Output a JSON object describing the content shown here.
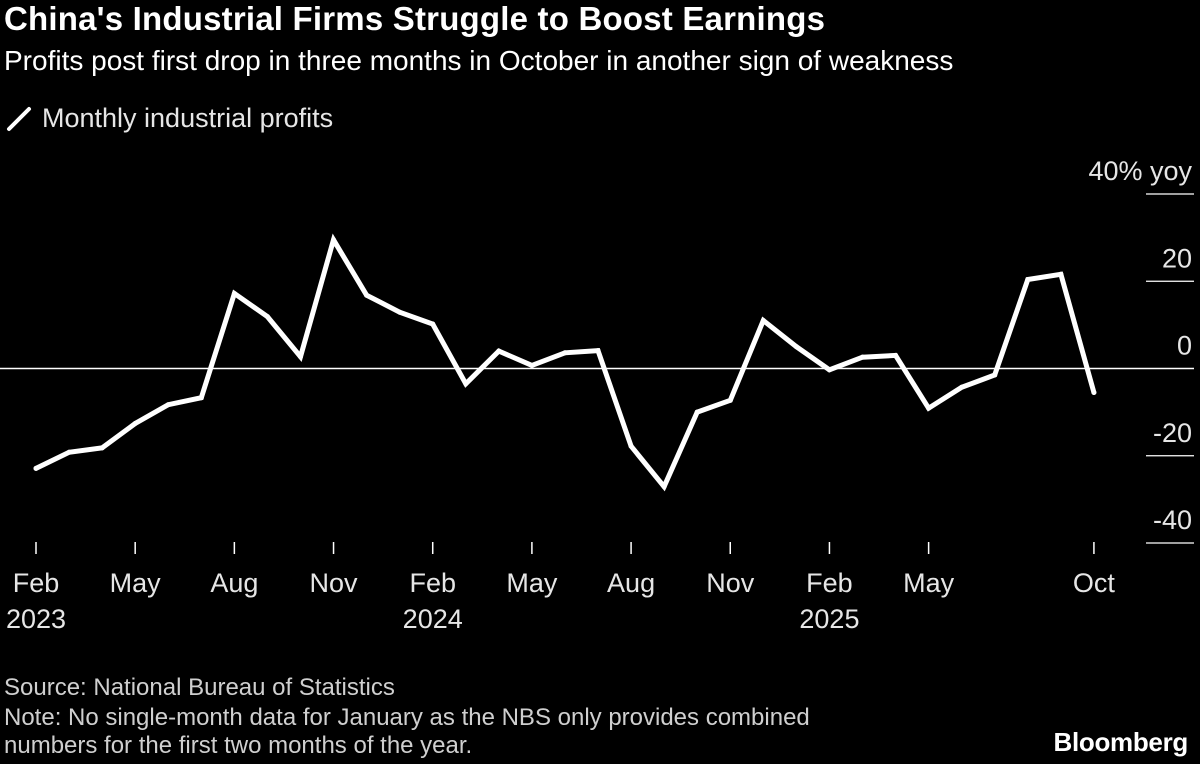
{
  "title": "China's Industrial Firms Struggle to Boost Earnings",
  "subtitle": "Profits post first drop in three months in October in another sign of weakness",
  "legend_label": "Monthly industrial profits",
  "source": "Source: National Bureau of Statistics",
  "note_line1": "Note: No single-month data for January as the NBS only provides combined",
  "note_line2": "numbers for the first two months of the year.",
  "brand": "Bloomberg",
  "colors": {
    "background": "#000000",
    "line": "#ffffff",
    "text": "#ffffff"
  },
  "chart_data": {
    "type": "line",
    "title": "China's Industrial Firms Struggle to Boost Earnings",
    "ylabel": "% yoy",
    "ylim": [
      -40,
      40
    ],
    "y_ticks": [
      {
        "value": 40,
        "label": "40% yoy"
      },
      {
        "value": 20,
        "label": "20"
      },
      {
        "value": 0,
        "label": "0"
      },
      {
        "value": -20,
        "label": "-20"
      },
      {
        "value": -40,
        "label": "-40"
      }
    ],
    "x_ticks": [
      {
        "month_index": 0,
        "label": "Feb",
        "year": "2023"
      },
      {
        "month_index": 3,
        "label": "May",
        "year": ""
      },
      {
        "month_index": 6,
        "label": "Aug",
        "year": ""
      },
      {
        "month_index": 9,
        "label": "Nov",
        "year": ""
      },
      {
        "month_index": 12,
        "label": "Feb",
        "year": "2024"
      },
      {
        "month_index": 15,
        "label": "May",
        "year": ""
      },
      {
        "month_index": 18,
        "label": "Aug",
        "year": ""
      },
      {
        "month_index": 21,
        "label": "Nov",
        "year": ""
      },
      {
        "month_index": 24,
        "label": "Feb",
        "year": "2025"
      },
      {
        "month_index": 27,
        "label": "May",
        "year": ""
      },
      {
        "month_index": 32,
        "label": "Oct",
        "year": ""
      }
    ],
    "series": [
      {
        "name": "Monthly industrial profits",
        "points": [
          {
            "month_index": 0,
            "period": "2023-02",
            "value": -22.9
          },
          {
            "month_index": 1,
            "period": "2023-03",
            "value": -19.2
          },
          {
            "month_index": 2,
            "period": "2023-04",
            "value": -18.2
          },
          {
            "month_index": 3,
            "period": "2023-05",
            "value": -12.6
          },
          {
            "month_index": 4,
            "period": "2023-06",
            "value": -8.3
          },
          {
            "month_index": 5,
            "period": "2023-07",
            "value": -6.7
          },
          {
            "month_index": 6,
            "period": "2023-08",
            "value": 17.2
          },
          {
            "month_index": 7,
            "period": "2023-09",
            "value": 11.9
          },
          {
            "month_index": 8,
            "period": "2023-10",
            "value": 2.7
          },
          {
            "month_index": 9,
            "period": "2023-11",
            "value": 29.5
          },
          {
            "month_index": 10,
            "period": "2023-12",
            "value": 16.8
          },
          {
            "month_index": 11,
            "period": "2024-01",
            "value": 12.9
          },
          {
            "month_index": 12,
            "period": "2024-02",
            "value": 10.2
          },
          {
            "month_index": 13,
            "period": "2024-03",
            "value": -3.5
          },
          {
            "month_index": 14,
            "period": "2024-04",
            "value": 4.0
          },
          {
            "month_index": 15,
            "period": "2024-05",
            "value": 0.7
          },
          {
            "month_index": 16,
            "period": "2024-06",
            "value": 3.6
          },
          {
            "month_index": 17,
            "period": "2024-07",
            "value": 4.1
          },
          {
            "month_index": 18,
            "period": "2024-08",
            "value": -17.8
          },
          {
            "month_index": 19,
            "period": "2024-09",
            "value": -27.1
          },
          {
            "month_index": 20,
            "period": "2024-10",
            "value": -10.0
          },
          {
            "month_index": 21,
            "period": "2024-11",
            "value": -7.3
          },
          {
            "month_index": 22,
            "period": "2024-12",
            "value": 11.0
          },
          {
            "month_index": 23,
            "period": "2025-01",
            "value": 5.0
          },
          {
            "month_index": 24,
            "period": "2025-02",
            "value": -0.3
          },
          {
            "month_index": 25,
            "period": "2025-03",
            "value": 2.6
          },
          {
            "month_index": 26,
            "period": "2025-04",
            "value": 3.0
          },
          {
            "month_index": 27,
            "period": "2025-05",
            "value": -9.1
          },
          {
            "month_index": 28,
            "period": "2025-06",
            "value": -4.3
          },
          {
            "month_index": 29,
            "period": "2025-07",
            "value": -1.5
          },
          {
            "month_index": 30,
            "period": "2025-08",
            "value": 20.4
          },
          {
            "month_index": 31,
            "period": "2025-09",
            "value": 21.6
          },
          {
            "month_index": 32,
            "period": "2025-10",
            "value": -5.5
          }
        ]
      }
    ]
  }
}
